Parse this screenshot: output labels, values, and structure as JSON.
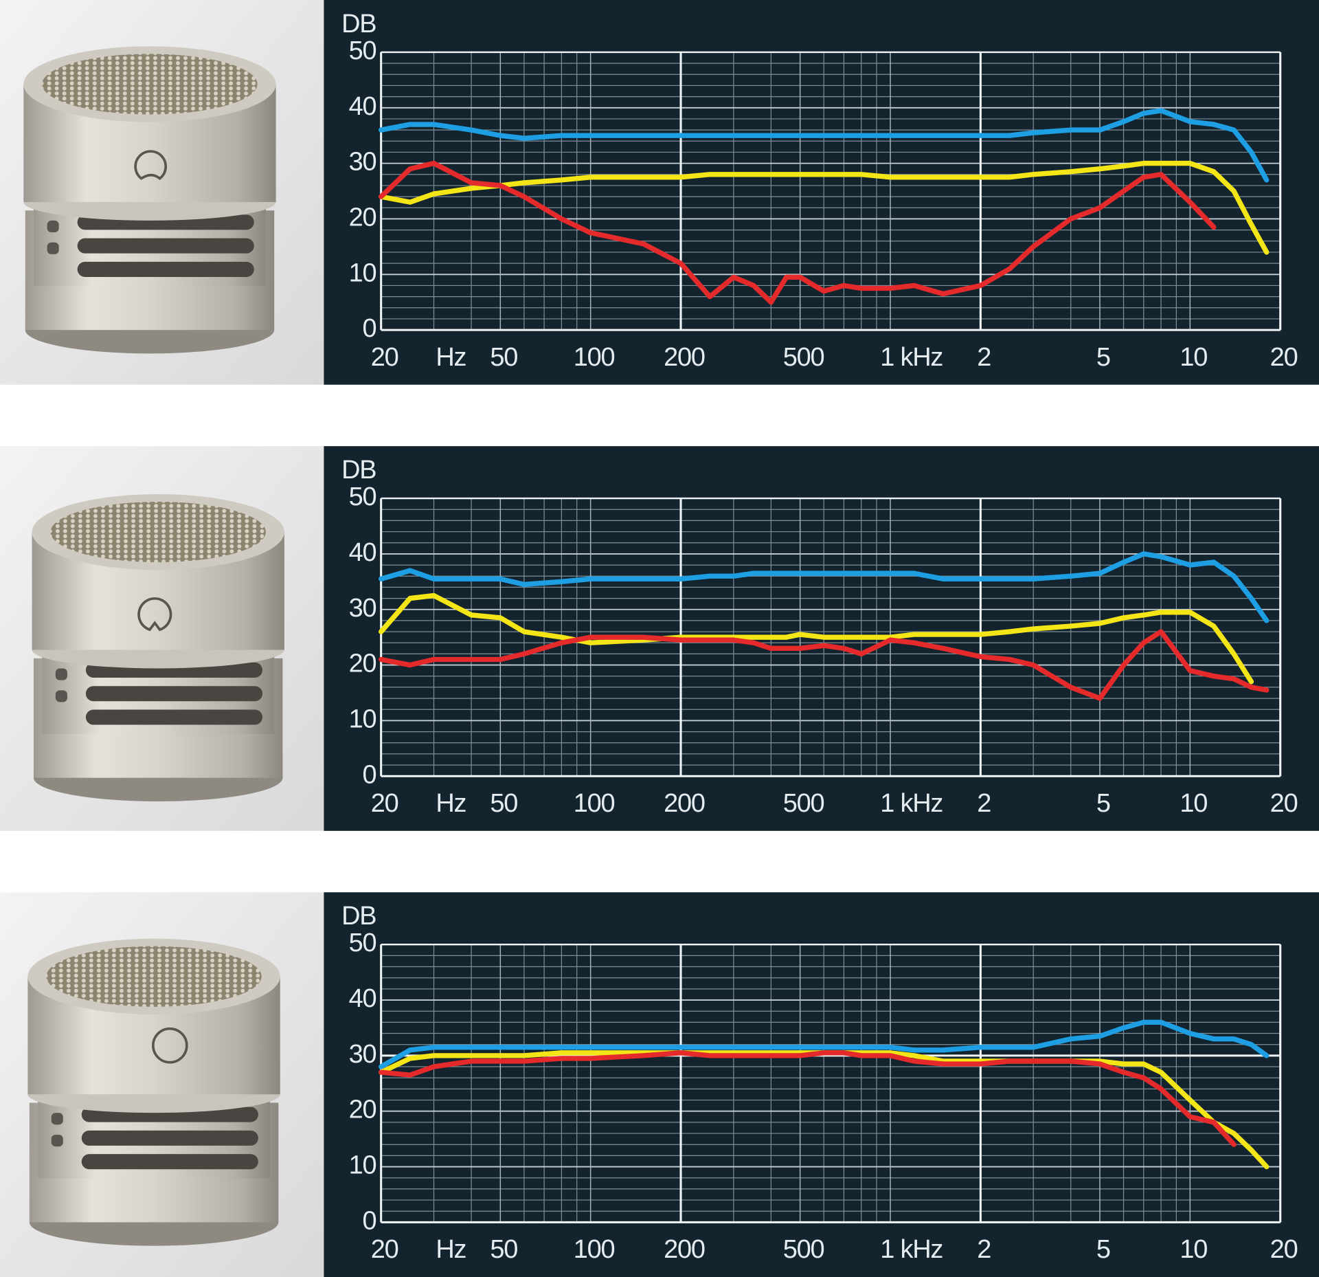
{
  "chart_data": [
    {
      "type": "line",
      "log_x": true,
      "y_label": "DB",
      "x_unit_label": "Hz",
      "xlim": [
        20,
        20000
      ],
      "ylim": [
        0,
        50
      ],
      "xticks": [
        {
          "value": 20,
          "label": "20"
        },
        50,
        100,
        200,
        500,
        {
          "value": 1000,
          "label": "1 kHz"
        },
        {
          "value": 2000,
          "label": "2"
        },
        {
          "value": 5000,
          "label": "5"
        },
        {
          "value": 10000,
          "label": "10"
        },
        {
          "value": 20000,
          "label": "20"
        }
      ],
      "yticks": [
        0,
        10,
        20,
        30,
        40,
        50
      ],
      "xgrid": [
        30,
        40,
        60,
        70,
        80,
        90,
        300,
        400,
        600,
        700,
        800,
        900,
        3000,
        4000,
        6000,
        7000,
        8000,
        9000
      ],
      "xgrid_major": [
        20,
        200,
        2000,
        20000
      ],
      "ygrid": [
        2,
        4,
        6,
        8,
        12,
        14,
        16,
        18,
        22,
        24,
        26,
        28,
        32,
        34,
        36,
        38,
        42,
        44,
        46,
        48
      ],
      "x": [
        20,
        25,
        30,
        40,
        50,
        60,
        80,
        100,
        150,
        200,
        250,
        300,
        350,
        400,
        450,
        500,
        600,
        700,
        800,
        1000,
        1200,
        1500,
        2000,
        2500,
        3000,
        4000,
        5000,
        6000,
        7000,
        8000,
        10000,
        12000,
        14000,
        16000,
        18000
      ],
      "series": [
        {
          "color": "#1e9fe3",
          "values": [
            36,
            37,
            37,
            36,
            35,
            34.5,
            35,
            35,
            35,
            35,
            35,
            35,
            35,
            35,
            35,
            35,
            35,
            35,
            35,
            35,
            35,
            35,
            35,
            35,
            35.5,
            36,
            36,
            37.5,
            39,
            39.5,
            37.5,
            37,
            36,
            32,
            27
          ]
        },
        {
          "color": "#f4e516",
          "values": [
            24,
            23,
            24.5,
            25.5,
            26,
            26.5,
            27,
            27.5,
            27.5,
            27.5,
            28,
            28,
            28,
            28,
            28,
            28,
            28,
            28,
            28,
            27.5,
            27.5,
            27.5,
            27.5,
            27.5,
            28,
            28.5,
            29,
            29.5,
            30,
            30,
            30,
            28.5,
            25,
            19,
            14
          ]
        },
        {
          "color": "#e42a2b",
          "values": [
            24,
            29,
            30,
            26.5,
            26,
            24,
            20,
            17.5,
            15.5,
            12,
            6,
            9.5,
            8,
            5,
            9.5,
            9.5,
            7,
            8,
            7.5,
            7.5,
            8,
            6.5,
            8,
            11,
            15,
            20,
            22,
            25,
            27.5,
            28,
            23,
            18.5,
            null,
            null,
            null
          ]
        }
      ]
    },
    {
      "type": "line",
      "log_x": true,
      "y_label": "DB",
      "x_unit_label": "Hz",
      "xlim": [
        20,
        20000
      ],
      "ylim": [
        0,
        50
      ],
      "xticks": [
        {
          "value": 20,
          "label": "20"
        },
        50,
        100,
        200,
        500,
        {
          "value": 1000,
          "label": "1 kHz"
        },
        {
          "value": 2000,
          "label": "2"
        },
        {
          "value": 5000,
          "label": "5"
        },
        {
          "value": 10000,
          "label": "10"
        },
        {
          "value": 20000,
          "label": "20"
        }
      ],
      "yticks": [
        0,
        10,
        20,
        30,
        40,
        50
      ],
      "xgrid": [
        30,
        40,
        60,
        70,
        80,
        90,
        300,
        400,
        600,
        700,
        800,
        900,
        3000,
        4000,
        6000,
        7000,
        8000,
        9000
      ],
      "xgrid_major": [
        20,
        200,
        2000,
        20000
      ],
      "ygrid": [
        2,
        4,
        6,
        8,
        12,
        14,
        16,
        18,
        22,
        24,
        26,
        28,
        32,
        34,
        36,
        38,
        42,
        44,
        46,
        48
      ],
      "x": [
        20,
        25,
        30,
        40,
        50,
        60,
        80,
        100,
        150,
        200,
        250,
        300,
        350,
        400,
        450,
        500,
        600,
        700,
        800,
        1000,
        1200,
        1500,
        2000,
        2500,
        3000,
        4000,
        5000,
        6000,
        7000,
        8000,
        10000,
        12000,
        14000,
        16000,
        18000
      ],
      "series": [
        {
          "color": "#1e9fe3",
          "values": [
            35.5,
            37,
            35.5,
            35.5,
            35.5,
            34.5,
            35,
            35.5,
            35.5,
            35.5,
            36,
            36,
            36.5,
            36.5,
            36.5,
            36.5,
            36.5,
            36.5,
            36.5,
            36.5,
            36.5,
            35.5,
            35.5,
            35.5,
            35.5,
            36,
            36.5,
            38.5,
            40,
            39.5,
            38,
            38.5,
            36,
            32,
            28
          ]
        },
        {
          "color": "#f4e516",
          "values": [
            26,
            32,
            32.5,
            29,
            28.5,
            26,
            25,
            24,
            24.5,
            25,
            25,
            25,
            25,
            25,
            25,
            25.5,
            25,
            25,
            25,
            25,
            25.5,
            25.5,
            25.5,
            26,
            26.5,
            27,
            27.5,
            28.5,
            29,
            29.5,
            29.5,
            27,
            22,
            17,
            null
          ]
        },
        {
          "color": "#e42a2b",
          "values": [
            21,
            20,
            21,
            21,
            21,
            22,
            24,
            25,
            25,
            24.5,
            24.5,
            24.5,
            24,
            23,
            23,
            23,
            23.5,
            23,
            22,
            24.5,
            24,
            23,
            21.5,
            21,
            20,
            16,
            14,
            20,
            24,
            26,
            19,
            18,
            17.5,
            16,
            15.5
          ]
        }
      ]
    },
    {
      "type": "line",
      "log_x": true,
      "y_label": "DB",
      "x_unit_label": "Hz",
      "xlim": [
        20,
        20000
      ],
      "ylim": [
        0,
        50
      ],
      "xticks": [
        {
          "value": 20,
          "label": "20"
        },
        50,
        100,
        200,
        500,
        {
          "value": 1000,
          "label": "1 kHz"
        },
        {
          "value": 2000,
          "label": "2"
        },
        {
          "value": 5000,
          "label": "5"
        },
        {
          "value": 10000,
          "label": "10"
        },
        {
          "value": 20000,
          "label": "20"
        }
      ],
      "yticks": [
        0,
        10,
        20,
        30,
        40,
        50
      ],
      "xgrid": [
        30,
        40,
        60,
        70,
        80,
        90,
        300,
        400,
        600,
        700,
        800,
        900,
        3000,
        4000,
        6000,
        7000,
        8000,
        9000
      ],
      "xgrid_major": [
        20,
        200,
        2000,
        20000
      ],
      "ygrid": [
        2,
        4,
        6,
        8,
        12,
        14,
        16,
        18,
        22,
        24,
        26,
        28,
        32,
        34,
        36,
        38,
        42,
        44,
        46,
        48
      ],
      "ygrid_major": [
        30
      ],
      "x": [
        20,
        25,
        30,
        40,
        50,
        60,
        80,
        100,
        150,
        200,
        250,
        300,
        350,
        400,
        450,
        500,
        600,
        700,
        800,
        1000,
        1200,
        1500,
        2000,
        2500,
        3000,
        4000,
        5000,
        6000,
        7000,
        8000,
        10000,
        12000,
        14000,
        16000,
        18000
      ],
      "series": [
        {
          "color": "#1e9fe3",
          "values": [
            28,
            31,
            31.5,
            31.5,
            31.5,
            31.5,
            31.5,
            31.5,
            31.5,
            31.5,
            31.5,
            31.5,
            31.5,
            31.5,
            31.5,
            31.5,
            31.5,
            31.5,
            31.5,
            31.5,
            31,
            31,
            31.5,
            31.5,
            31.5,
            33,
            33.5,
            35,
            36,
            36,
            34,
            33,
            33,
            32,
            30
          ]
        },
        {
          "color": "#f4e516",
          "values": [
            27,
            29.5,
            30,
            30,
            30,
            30,
            30.5,
            30.5,
            30.5,
            30.5,
            30.5,
            30.5,
            30.5,
            30.5,
            30.5,
            30.5,
            30.5,
            30.5,
            30.5,
            30.5,
            30,
            29,
            29,
            29,
            29,
            29,
            29,
            28.5,
            28.5,
            27,
            22,
            18,
            16,
            13,
            10
          ]
        },
        {
          "color": "#e42a2b",
          "values": [
            27,
            26.5,
            28,
            29,
            29,
            29,
            29.5,
            29.5,
            30,
            30.5,
            30,
            30,
            30,
            30,
            30,
            30,
            30.5,
            30.5,
            30,
            30,
            29,
            28.5,
            28.5,
            29,
            29,
            29,
            28.5,
            27,
            26,
            24,
            19,
            18,
            14,
            null,
            null
          ]
        }
      ]
    }
  ]
}
